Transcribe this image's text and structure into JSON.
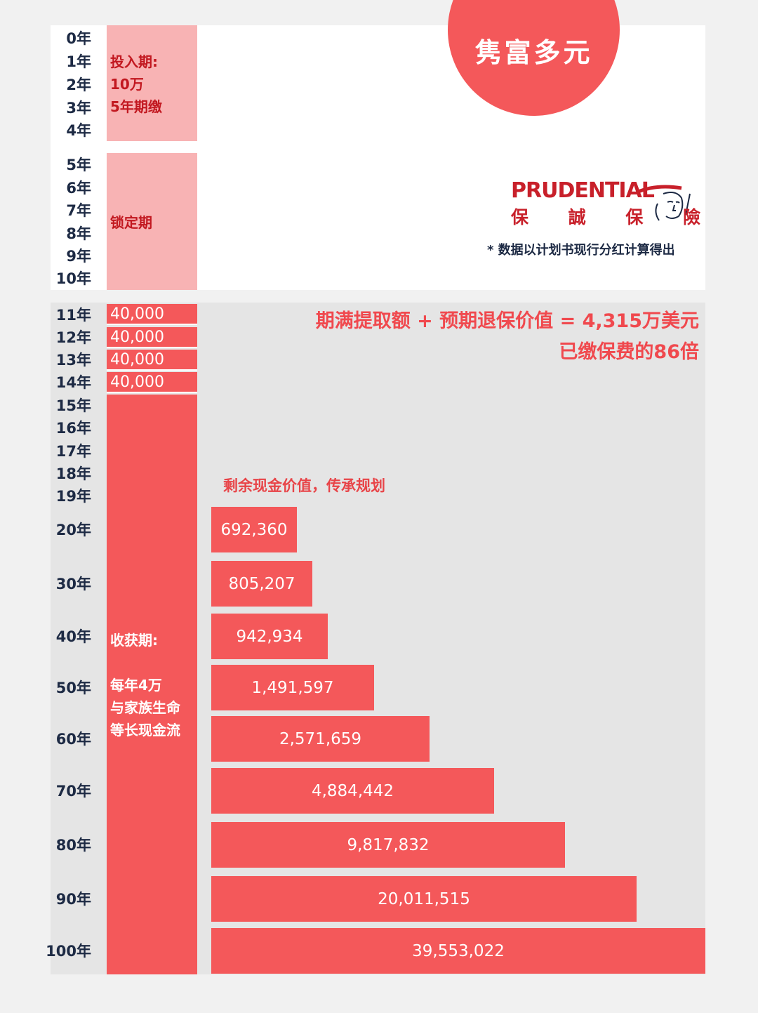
{
  "badge_text": "隽富多元",
  "logo": {
    "brand": "PRUDENTIAL",
    "chinese": "保 誠 保 險"
  },
  "footnote": "* 数据以计划书现行分红计算得出",
  "headline": [
    "期满提取额 + 预期退保价值 = 4,315万美元",
    "已缴保费的86倍"
  ],
  "phases": {
    "invest": "投入期:\n10万\n5年期缴",
    "lock": "锁定期",
    "harvest": "收获期:\n\n每年4万\n与家族生命\n等长现金流"
  },
  "years_top": [
    "0年",
    "1年",
    "2年",
    "3年",
    "4年",
    "5年",
    "6年",
    "7年",
    "8年",
    "9年",
    "10年"
  ],
  "years_mid": [
    "11年",
    "12年",
    "13年",
    "14年",
    "15年",
    "16年",
    "17年",
    "18年",
    "19年"
  ],
  "withdrawals": [
    "40,000",
    "40,000",
    "40,000",
    "40,000"
  ],
  "colors": {
    "accent": "#f4585a",
    "pink": "#f8b3b4",
    "navy": "#1d2a44"
  },
  "chart_data": {
    "type": "bar",
    "orientation": "horizontal",
    "title": "剩余现金价值，传承规划",
    "categories": [
      "20年",
      "30年",
      "40年",
      "50年",
      "60年",
      "70年",
      "80年",
      "90年",
      "100年"
    ],
    "values": [
      692360,
      805207,
      942934,
      1491597,
      2571659,
      4884442,
      9817832,
      20011515,
      39553022
    ],
    "value_labels": [
      "692,360",
      "805,207",
      "942,934",
      "1,491,597",
      "2,571,659",
      "4,884,442",
      "9,817,832",
      "20,011,515",
      "39,553,022"
    ],
    "scale": "log",
    "grid": false,
    "legend": "none"
  }
}
